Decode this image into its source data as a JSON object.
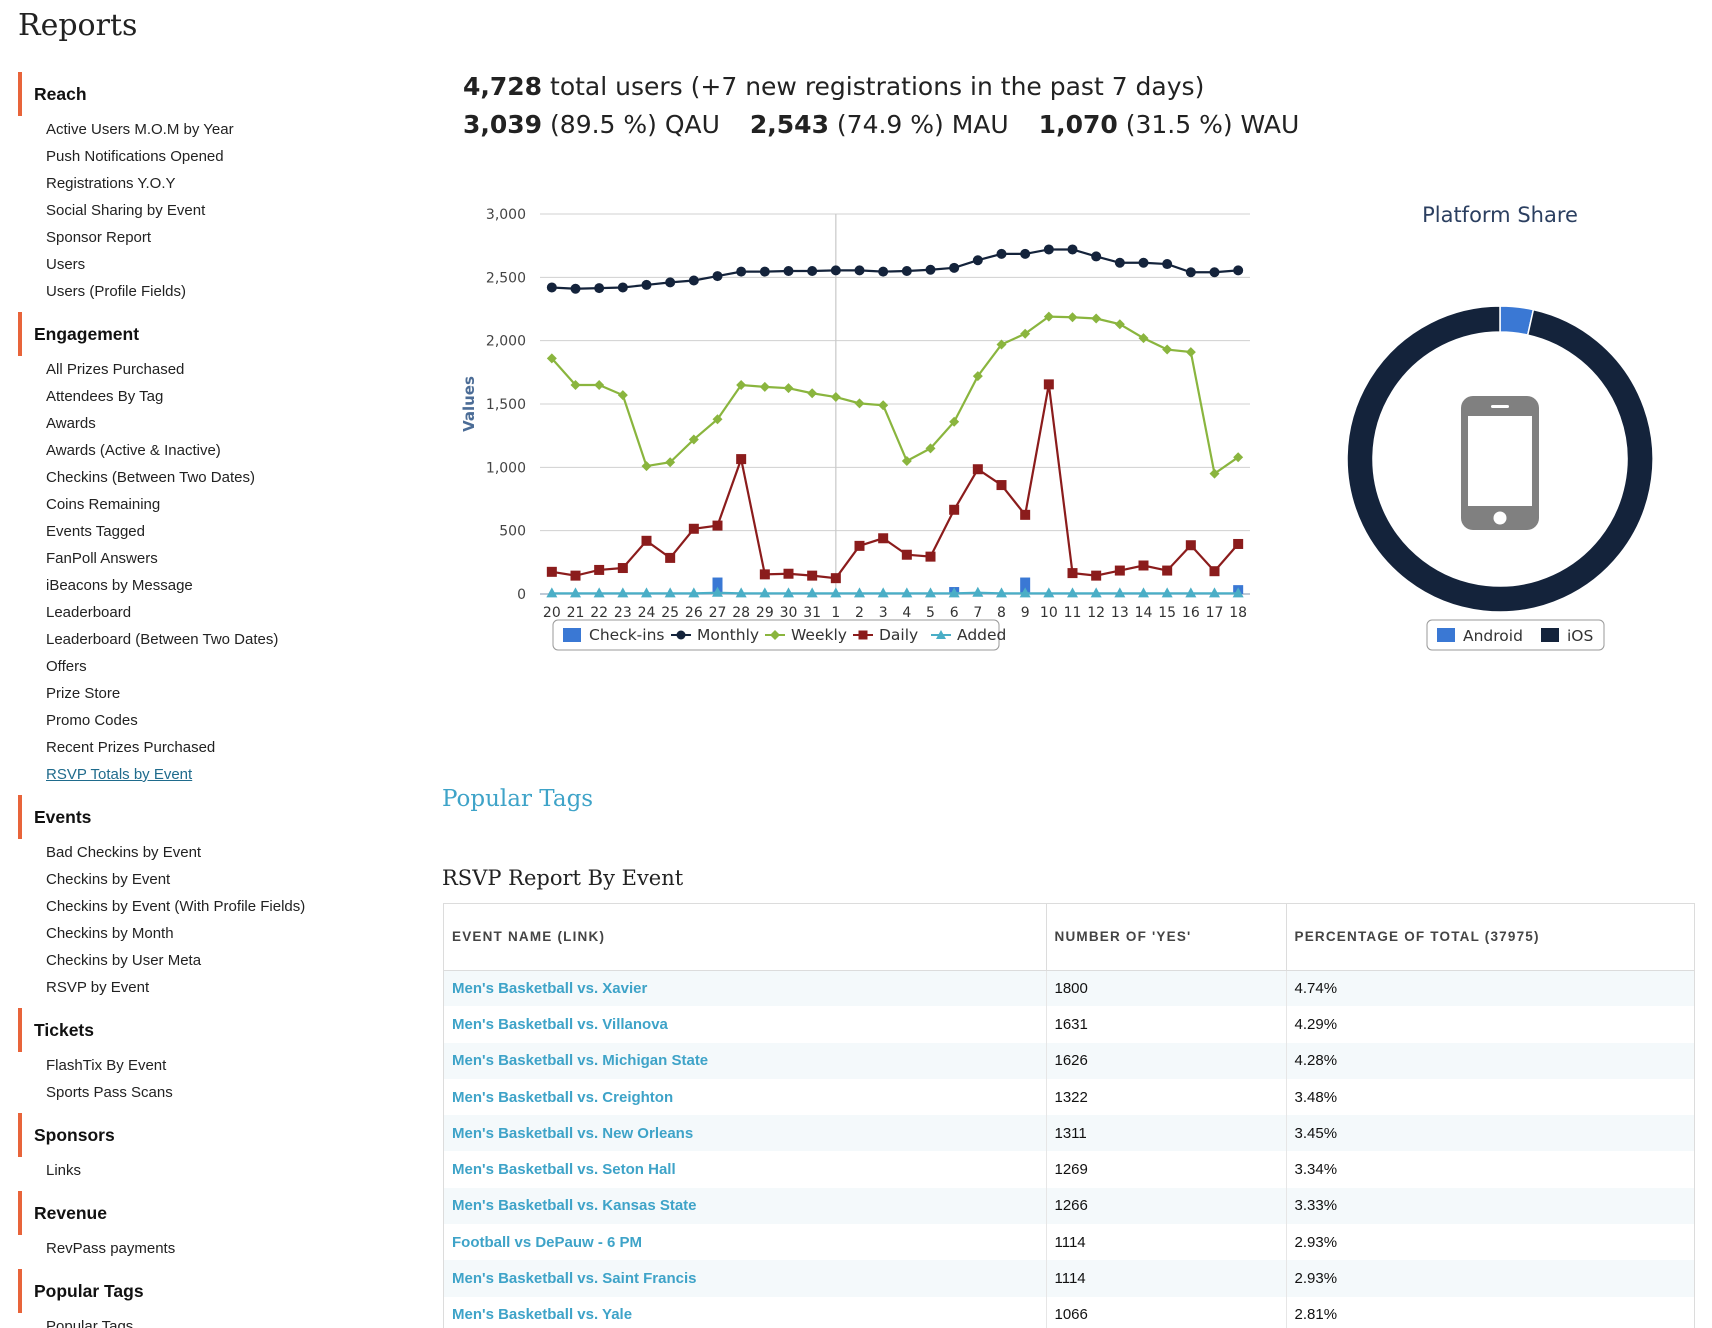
{
  "page": {
    "title": "Reports"
  },
  "sidebar": {
    "sections": [
      {
        "header": "Reach",
        "items": [
          "Active Users M.O.M by Year",
          "Push Notifications Opened",
          "Registrations Y.O.Y",
          "Social Sharing by Event",
          "Sponsor Report",
          "Users",
          "Users (Profile Fields)"
        ]
      },
      {
        "header": "Engagement",
        "items": [
          "All Prizes Purchased",
          "Attendees By Tag",
          "Awards",
          "Awards (Active & Inactive)",
          "Checkins (Between Two Dates)",
          "Coins Remaining",
          "Events Tagged",
          "FanPoll Answers",
          "iBeacons by Message",
          "Leaderboard",
          "Leaderboard (Between Two Dates)",
          "Offers",
          "Prize Store",
          "Promo Codes",
          "Recent Prizes Purchased",
          "RSVP Totals by Event"
        ]
      },
      {
        "header": "Events",
        "items": [
          "Bad Checkins by Event",
          "Checkins by Event",
          "Checkins by Event (With Profile Fields)",
          "Checkins by Month",
          "Checkins by User Meta",
          "RSVP by Event"
        ]
      },
      {
        "header": "Tickets",
        "items": [
          "FlashTix By Event",
          "Sports Pass Scans"
        ]
      },
      {
        "header": "Sponsors",
        "items": [
          "Links"
        ]
      },
      {
        "header": "Revenue",
        "items": [
          "RevPass payments"
        ]
      },
      {
        "header": "Popular Tags",
        "items": [
          "Popular Tags"
        ]
      }
    ],
    "active_item": "RSVP Totals by Event"
  },
  "stats": {
    "total_users": "4,728",
    "total_users_text": "total users (+7 new registrations in the past 7 days)",
    "qau_value": "3,039",
    "qau_text": "(89.5 %) QAU",
    "mau_value": "2,543",
    "mau_text": "(74.9 %) MAU",
    "wau_value": "1,070",
    "wau_text": "(31.5 %) WAU"
  },
  "chart_data": [
    {
      "type": "line",
      "title": "",
      "xlabel": "",
      "ylabel": "Values",
      "ylim": [
        0,
        3000
      ],
      "yticks": [
        0,
        500,
        1000,
        1500,
        2000,
        2500,
        3000
      ],
      "ytick_labels": [
        "0",
        "500",
        "1,000",
        "1,500",
        "2,000",
        "2,500",
        "3,000"
      ],
      "categories": [
        "20",
        "21",
        "22",
        "23",
        "24",
        "25",
        "26",
        "27",
        "28",
        "29",
        "30",
        "31",
        "1",
        "2",
        "3",
        "4",
        "5",
        "6",
        "7",
        "8",
        "9",
        "10",
        "11",
        "12",
        "13",
        "14",
        "15",
        "16",
        "17",
        "18"
      ],
      "grid": true,
      "legend": "bottom",
      "series": [
        {
          "name": "Check-ins",
          "kind": "bar",
          "color": "#3a78d4",
          "values": [
            0,
            0,
            0,
            0,
            0,
            0,
            0,
            130,
            0,
            0,
            0,
            0,
            0,
            0,
            10,
            0,
            0,
            55,
            15,
            0,
            130,
            0,
            0,
            0,
            0,
            0,
            0,
            0,
            0,
            70
          ]
        },
        {
          "name": "Monthly",
          "kind": "line",
          "marker": "circle",
          "color": "#14233b",
          "values": [
            2420,
            2410,
            2415,
            2420,
            2440,
            2460,
            2475,
            2510,
            2545,
            2545,
            2550,
            2550,
            2555,
            2555,
            2545,
            2550,
            2560,
            2575,
            2635,
            2685,
            2685,
            2720,
            2720,
            2665,
            2615,
            2615,
            2605,
            2540,
            2540,
            2555
          ]
        },
        {
          "name": "Weekly",
          "kind": "line",
          "marker": "diamond",
          "color": "#8ab53e",
          "values": [
            1860,
            1650,
            1650,
            1570,
            1010,
            1040,
            1220,
            1380,
            1650,
            1635,
            1625,
            1585,
            1555,
            1505,
            1490,
            1050,
            1150,
            1360,
            1720,
            1970,
            2055,
            2190,
            2185,
            2175,
            2130,
            2020,
            1930,
            1910,
            950,
            1080
          ]
        },
        {
          "name": "Daily",
          "kind": "line",
          "marker": "square",
          "color": "#8b1c1c",
          "values": [
            175,
            145,
            190,
            205,
            420,
            285,
            515,
            540,
            1065,
            155,
            160,
            145,
            125,
            380,
            440,
            310,
            295,
            665,
            985,
            860,
            625,
            1655,
            165,
            145,
            185,
            225,
            185,
            385,
            180,
            395
          ]
        },
        {
          "name": "Added",
          "kind": "line",
          "marker": "triangle",
          "color": "#4aaec6",
          "values": [
            5,
            5,
            5,
            5,
            5,
            5,
            5,
            10,
            5,
            5,
            5,
            5,
            5,
            5,
            5,
            5,
            5,
            5,
            10,
            5,
            5,
            5,
            5,
            5,
            5,
            5,
            5,
            5,
            5,
            5
          ]
        }
      ]
    },
    {
      "type": "pie",
      "title": "Platform Share",
      "legend": "bottom",
      "series": [
        {
          "name": "Android",
          "color": "#3a78d4",
          "value": 3.5
        },
        {
          "name": "iOS",
          "color": "#14233b",
          "value": 96.5
        }
      ]
    }
  ],
  "popular_tags_link": "Popular Tags",
  "rsvp_table": {
    "title": "RSVP Report By Event",
    "headers": [
      "EVENT NAME (LINK)",
      "NUMBER OF 'YES'",
      "PERCENTAGE OF TOTAL (37975)"
    ],
    "rows": [
      {
        "event": "Men's Basketball vs. Xavier",
        "yes": "1800",
        "pct": "4.74%"
      },
      {
        "event": "Men's Basketball vs. Villanova",
        "yes": "1631",
        "pct": "4.29%"
      },
      {
        "event": "Men's Basketball vs. Michigan State",
        "yes": "1626",
        "pct": "4.28%"
      },
      {
        "event": "Men's Basketball vs. Creighton",
        "yes": "1322",
        "pct": "3.48%"
      },
      {
        "event": "Men's Basketball vs. New Orleans",
        "yes": "1311",
        "pct": "3.45%"
      },
      {
        "event": "Men's Basketball vs. Seton Hall",
        "yes": "1269",
        "pct": "3.34%"
      },
      {
        "event": "Men's Basketball vs. Kansas State",
        "yes": "1266",
        "pct": "3.33%"
      },
      {
        "event": "Football vs DePauw - 6 PM",
        "yes": "1114",
        "pct": "2.93%"
      },
      {
        "event": "Men's Basketball vs. Saint Francis",
        "yes": "1114",
        "pct": "2.93%"
      },
      {
        "event": "Men's Basketball vs. Yale",
        "yes": "1066",
        "pct": "2.81%"
      },
      {
        "event": "",
        "yes": "",
        "pct": ""
      }
    ]
  },
  "icons": {
    "pie_center": "smartphone-icon"
  }
}
